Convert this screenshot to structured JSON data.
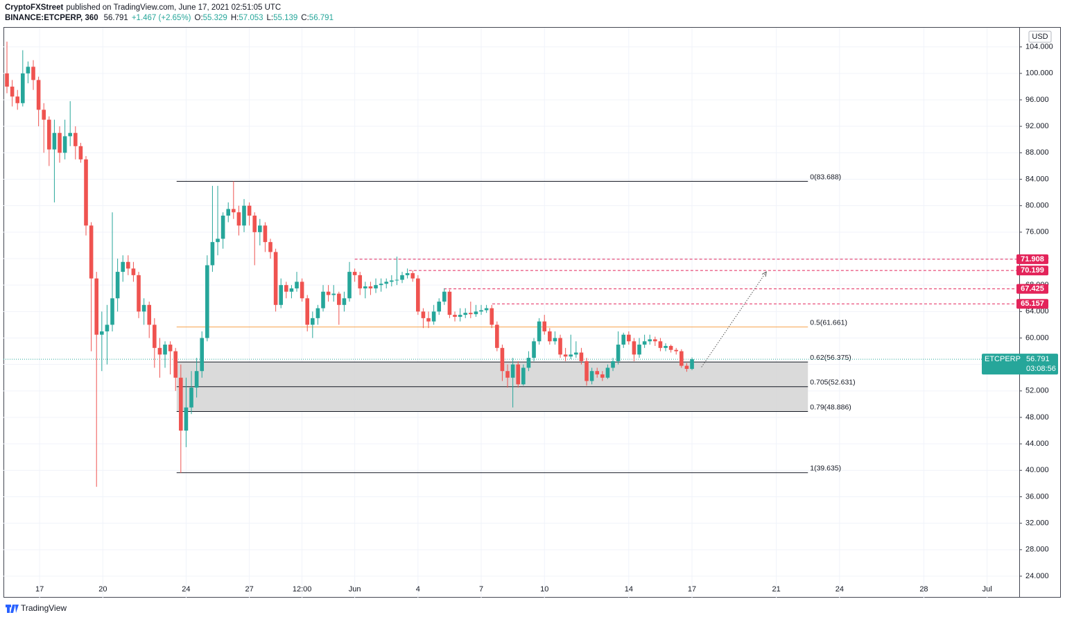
{
  "header": {
    "author": "CryptoFXStreet",
    "published": "published on TradingView.com, June 17, 2021 02:51:05 UTC",
    "symbol": "BINANCE:ETCPERP, 360",
    "last": "56.791",
    "change": "+1.467 (+2.65%)",
    "ohlc": [
      {
        "k": "O:",
        "v": "55.329"
      },
      {
        "k": "H:",
        "v": "57.053"
      },
      {
        "k": "L:",
        "v": "55.139"
      },
      {
        "k": "C:",
        "v": "56.791"
      }
    ]
  },
  "footer": {
    "brand": "TradingView"
  },
  "chart_data": {
    "type": "candlestick",
    "currency": "USD",
    "up_color": "#26a69a",
    "down_color": "#ef5350",
    "grid": true,
    "xlim": [
      -0.66,
      192.1
    ],
    "ylim": [
      20.75,
      106.9
    ],
    "xticks": [
      {
        "value": 6.2,
        "label": "17"
      },
      {
        "value": 18.2,
        "label": "20"
      },
      {
        "value": 34,
        "label": "24"
      },
      {
        "value": 46,
        "label": "27"
      },
      {
        "value": 56,
        "label": "12:00"
      },
      {
        "value": 66,
        "label": "Jun"
      },
      {
        "value": 78,
        "label": "4"
      },
      {
        "value": 90,
        "label": "7"
      },
      {
        "value": 102,
        "label": "10"
      },
      {
        "value": 118,
        "label": "14"
      },
      {
        "value": 130,
        "label": "17"
      },
      {
        "value": 146,
        "label": "21"
      },
      {
        "value": 158,
        "label": "24"
      },
      {
        "value": 174,
        "label": "28"
      },
      {
        "value": 186,
        "label": "Jul"
      }
    ],
    "yticks": [
      {
        "value": 24,
        "label": "24.000"
      },
      {
        "value": 28,
        "label": "28.000"
      },
      {
        "value": 32,
        "label": "32.000"
      },
      {
        "value": 36,
        "label": "36.000"
      },
      {
        "value": 40,
        "label": "40.000"
      },
      {
        "value": 44,
        "label": "44.000"
      },
      {
        "value": 48,
        "label": "48.000"
      },
      {
        "value": 52,
        "label": "52.000"
      },
      {
        "value": 56,
        "label": "56.000"
      },
      {
        "value": 60,
        "label": "60.000"
      },
      {
        "value": 64,
        "label": "64.000"
      },
      {
        "value": 68,
        "label": "68.000"
      },
      {
        "value": 72,
        "label": "72.000"
      },
      {
        "value": 76,
        "label": "76.000"
      },
      {
        "value": 80,
        "label": "80.000"
      },
      {
        "value": 84,
        "label": "84.000"
      },
      {
        "value": 88,
        "label": "88.000"
      },
      {
        "value": 92,
        "label": "92.000"
      },
      {
        "value": 96,
        "label": "96.000"
      },
      {
        "value": 100,
        "label": "100.000"
      },
      {
        "value": 104,
        "label": "104.000"
      }
    ],
    "candles": [
      [
        100,
        104.8,
        97,
        98
      ],
      [
        98,
        99,
        95,
        96.5
      ],
      [
        96.5,
        97.5,
        94.5,
        95.5
      ],
      [
        95.5,
        103.5,
        95,
        100
      ],
      [
        100,
        101.8,
        98.5,
        101
      ],
      [
        101,
        102,
        97.5,
        99
      ],
      [
        99,
        99.5,
        92,
        94.5
      ],
      [
        94.5,
        95.5,
        88,
        93
      ],
      [
        93,
        93.5,
        86,
        88.5
      ],
      [
        88.5,
        93,
        80.5,
        91
      ],
      [
        91,
        92,
        86.5,
        88
      ],
      [
        88,
        93,
        87,
        90.5
      ],
      [
        90.5,
        95.8,
        89,
        91
      ],
      [
        91,
        92,
        87,
        89
      ],
      [
        89,
        89.5,
        86.5,
        87
      ],
      [
        87,
        87.5,
        75.5,
        77
      ],
      [
        77,
        77.5,
        58,
        69
      ],
      [
        69,
        70,
        37.5,
        60.5
      ],
      [
        60.5,
        64,
        55,
        61
      ],
      [
        61,
        65,
        56,
        62
      ],
      [
        62,
        79,
        61,
        66
      ],
      [
        66,
        72,
        64,
        70
      ],
      [
        70,
        72.5,
        68.5,
        71.5
      ],
      [
        71.5,
        72.5,
        69.5,
        70.5
      ],
      [
        70.5,
        71.5,
        68.5,
        69.5
      ],
      [
        69.5,
        70,
        63,
        64
      ],
      [
        64,
        66,
        62,
        65
      ],
      [
        65,
        65.5,
        60,
        62
      ],
      [
        62,
        63,
        55.5,
        58.5
      ],
      [
        58.5,
        60,
        54,
        57.5
      ],
      [
        57.5,
        59.5,
        55.5,
        59
      ],
      [
        59,
        59.5,
        54.5,
        58
      ],
      [
        58,
        58.5,
        52,
        54
      ],
      [
        54,
        56,
        39.6,
        46
      ],
      [
        46,
        54,
        43.5,
        49.5
      ],
      [
        49.5,
        55,
        48.5,
        52.5
      ],
      [
        52.5,
        57,
        51,
        55
      ],
      [
        55,
        61,
        54,
        60
      ],
      [
        60,
        72.5,
        59.5,
        71
      ],
      [
        71,
        83,
        70,
        74.5
      ],
      [
        74.5,
        83,
        72.5,
        75
      ],
      [
        75,
        79,
        73.5,
        78.5
      ],
      [
        78.5,
        80.5,
        77.5,
        79.5
      ],
      [
        79.5,
        83.7,
        78,
        79
      ],
      [
        79,
        80,
        75.5,
        77
      ],
      [
        77,
        81,
        76,
        80
      ],
      [
        80,
        80.5,
        77,
        78.5
      ],
      [
        78.5,
        79,
        71,
        76
      ],
      [
        76,
        78,
        74,
        77
      ],
      [
        77,
        77.5,
        73,
        74.5
      ],
      [
        74.5,
        75,
        72,
        73
      ],
      [
        73,
        73.5,
        64,
        65
      ],
      [
        65,
        69,
        64.5,
        68
      ],
      [
        68,
        68.5,
        66,
        67
      ],
      [
        67,
        68,
        66,
        67.5
      ],
      [
        67.5,
        70,
        67,
        68.5
      ],
      [
        68.5,
        69,
        65.5,
        66
      ],
      [
        66,
        66.5,
        61,
        62
      ],
      [
        62,
        64,
        60,
        63
      ],
      [
        63,
        65,
        62,
        64.5
      ],
      [
        64.5,
        68,
        64,
        67
      ],
      [
        67,
        68,
        65.5,
        66.5
      ],
      [
        66.5,
        68,
        65.5,
        66.7
      ],
      [
        66.7,
        67,
        62,
        65
      ],
      [
        65,
        67,
        64,
        66
      ],
      [
        66,
        71.5,
        65.5,
        70
      ],
      [
        70,
        70.5,
        68.5,
        69.5
      ],
      [
        69.5,
        70,
        66.5,
        67.5
      ],
      [
        67.5,
        68.5,
        66,
        67.8
      ],
      [
        67.8,
        68.5,
        66.5,
        67.5
      ],
      [
        67.5,
        69,
        66.8,
        68
      ],
      [
        68,
        69,
        67,
        68.2
      ],
      [
        68.2,
        69,
        67.5,
        68.5
      ],
      [
        68.5,
        69.5,
        67.8,
        68.7
      ],
      [
        68.7,
        72.3,
        68,
        68.8
      ],
      [
        68.8,
        70,
        68.3,
        69.5
      ],
      [
        69.5,
        70.5,
        69,
        69.8
      ],
      [
        69.8,
        70.2,
        68.5,
        69
      ],
      [
        69,
        69.5,
        63.5,
        64
      ],
      [
        64,
        64.5,
        61.5,
        63
      ],
      [
        63,
        64,
        61.5,
        62.5
      ],
      [
        62.5,
        65,
        62,
        64
      ],
      [
        64,
        66,
        63.5,
        65.5
      ],
      [
        65.5,
        67.5,
        65,
        67
      ],
      [
        67,
        67.3,
        63,
        63.5
      ],
      [
        63.5,
        64,
        62.5,
        63.2
      ],
      [
        63.2,
        64.5,
        62.5,
        63.5
      ],
      [
        63.5,
        64.5,
        63,
        63.8
      ],
      [
        63.8,
        65.5,
        63,
        63.6
      ],
      [
        63.6,
        65,
        63.2,
        64
      ],
      [
        64,
        65,
        63.5,
        64.2
      ],
      [
        64.2,
        65,
        63.8,
        64.5
      ],
      [
        64.5,
        65,
        61.5,
        62
      ],
      [
        62,
        62.5,
        58,
        58.5
      ],
      [
        58.5,
        59,
        53.5,
        55
      ],
      [
        55,
        56,
        52.5,
        54
      ],
      [
        54,
        57,
        49.5,
        56
      ],
      [
        56,
        56.5,
        52.5,
        53
      ],
      [
        53,
        56,
        52.8,
        55.5
      ],
      [
        55.5,
        58,
        55,
        57
      ],
      [
        57,
        60,
        56.5,
        59.5
      ],
      [
        59.5,
        63,
        59,
        62.5
      ],
      [
        62.5,
        63.5,
        60.5,
        61
      ],
      [
        61,
        61.5,
        59,
        59.5
      ],
      [
        59.5,
        61,
        59,
        60
      ],
      [
        60,
        60.5,
        57,
        57.5
      ],
      [
        57.5,
        58.5,
        56.5,
        57.2
      ],
      [
        57.2,
        60.5,
        56.8,
        57.5
      ],
      [
        57.5,
        59.5,
        57,
        57.8
      ],
      [
        57.8,
        58.5,
        56,
        56.5
      ],
      [
        56.5,
        57,
        52.8,
        53.5
      ],
      [
        53.5,
        55.5,
        53,
        55
      ],
      [
        55,
        55.5,
        54,
        54.5
      ],
      [
        54.5,
        55,
        53.5,
        54
      ],
      [
        54,
        56,
        53.8,
        55.5
      ],
      [
        55.5,
        57,
        55,
        56.5
      ],
      [
        56.5,
        61,
        56,
        59
      ],
      [
        59,
        60.8,
        58.5,
        60.5
      ],
      [
        60.5,
        61,
        59,
        59.5
      ],
      [
        59.5,
        60,
        56.5,
        57.5
      ],
      [
        57.5,
        60,
        57,
        59
      ],
      [
        59,
        60.5,
        58.5,
        59.5
      ],
      [
        59.5,
        60.5,
        59,
        59.8
      ],
      [
        59.8,
        60.2,
        58.8,
        59.5
      ],
      [
        59.5,
        60,
        58,
        58.5
      ],
      [
        58.5,
        59.2,
        58,
        58.8
      ],
      [
        58.8,
        59,
        57.8,
        58.2
      ],
      [
        58.2,
        58.5,
        57.5,
        58
      ],
      [
        58,
        58.3,
        55.5,
        55.8
      ],
      [
        55.8,
        56.2,
        54.9,
        55.329
      ],
      [
        55.329,
        57.053,
        55.139,
        56.791
      ]
    ],
    "fib": {
      "x_range": [
        32.2,
        152
      ],
      "zone": [
        56.375,
        48.886
      ],
      "zone_color": "#d6d6d6",
      "levels": [
        {
          "value": 83.688,
          "label": "0(83.688)",
          "color": "#131722"
        },
        {
          "value": 61.661,
          "label": "0.5(61.661)",
          "color": "#f7a34b"
        },
        {
          "value": 56.375,
          "label": "0.62(56.375)",
          "color": "#131722"
        },
        {
          "value": 52.631,
          "label": "0.705(52.631)",
          "color": "#131722"
        },
        {
          "value": 48.886,
          "label": "0.79(48.886)",
          "color": "#131722"
        },
        {
          "value": 39.635,
          "label": "1(39.635)",
          "color": "#131722"
        }
      ]
    },
    "targets": {
      "color": "#e3245a",
      "levels": [
        {
          "value": 71.908,
          "start": 66
        },
        {
          "value": 70.199,
          "start": 76.3
        },
        {
          "value": 67.425,
          "start": 82.9
        },
        {
          "value": 65.157,
          "start": 92.1
        }
      ]
    },
    "projection": {
      "from": [
        131.8,
        55.6
      ],
      "to": [
        144.1,
        70.0
      ]
    },
    "last_price": {
      "symbol": "ETCPERP",
      "value": 56.791,
      "countdown": "03:08:56",
      "color": "#26a69a"
    }
  }
}
